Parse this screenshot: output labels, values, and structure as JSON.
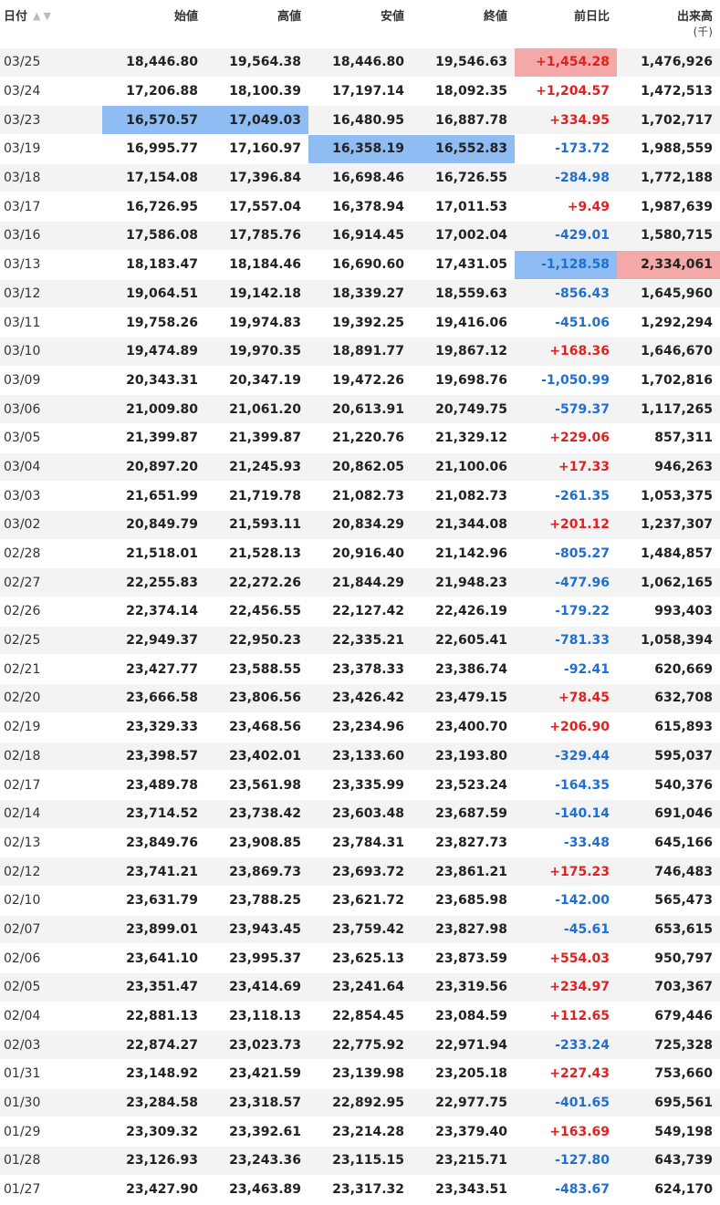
{
  "header": {
    "date": "日付",
    "open": "始値",
    "high": "高値",
    "low": "安値",
    "close": "終値",
    "change": "前日比",
    "volume": "出来高",
    "volume_unit": "(千)",
    "sort_icon": "sort-asc-desc-icon"
  },
  "colors": {
    "positive": "#e0211f",
    "negative": "#1f6fd1",
    "highlight_blue": "#8fbdf3",
    "highlight_red": "#f4a8a8"
  },
  "rows": [
    {
      "date": "03/25",
      "open": "18,446.80",
      "high": "19,564.38",
      "low": "18,446.80",
      "close": "19,546.63",
      "change": "+1,454.28",
      "volume": "1,476,926",
      "hl": {
        "change": "red"
      }
    },
    {
      "date": "03/24",
      "open": "17,206.88",
      "high": "18,100.39",
      "low": "17,197.14",
      "close": "18,092.35",
      "change": "+1,204.57",
      "volume": "1,472,513",
      "hl": {}
    },
    {
      "date": "03/23",
      "open": "16,570.57",
      "high": "17,049.03",
      "low": "16,480.95",
      "close": "16,887.78",
      "change": "+334.95",
      "volume": "1,702,717",
      "hl": {
        "open": "blue",
        "high": "blue"
      }
    },
    {
      "date": "03/19",
      "open": "16,995.77",
      "high": "17,160.97",
      "low": "16,358.19",
      "close": "16,552.83",
      "change": "-173.72",
      "volume": "1,988,559",
      "hl": {
        "low": "blue",
        "close": "blue"
      }
    },
    {
      "date": "03/18",
      "open": "17,154.08",
      "high": "17,396.84",
      "low": "16,698.46",
      "close": "16,726.55",
      "change": "-284.98",
      "volume": "1,772,188",
      "hl": {}
    },
    {
      "date": "03/17",
      "open": "16,726.95",
      "high": "17,557.04",
      "low": "16,378.94",
      "close": "17,011.53",
      "change": "+9.49",
      "volume": "1,987,639",
      "hl": {}
    },
    {
      "date": "03/16",
      "open": "17,586.08",
      "high": "17,785.76",
      "low": "16,914.45",
      "close": "17,002.04",
      "change": "-429.01",
      "volume": "1,580,715",
      "hl": {}
    },
    {
      "date": "03/13",
      "open": "18,183.47",
      "high": "18,184.46",
      "low": "16,690.60",
      "close": "17,431.05",
      "change": "-1,128.58",
      "volume": "2,334,061",
      "hl": {
        "change": "blue",
        "volume": "red"
      }
    },
    {
      "date": "03/12",
      "open": "19,064.51",
      "high": "19,142.18",
      "low": "18,339.27",
      "close": "18,559.63",
      "change": "-856.43",
      "volume": "1,645,960",
      "hl": {}
    },
    {
      "date": "03/11",
      "open": "19,758.26",
      "high": "19,974.83",
      "low": "19,392.25",
      "close": "19,416.06",
      "change": "-451.06",
      "volume": "1,292,294",
      "hl": {}
    },
    {
      "date": "03/10",
      "open": "19,474.89",
      "high": "19,970.35",
      "low": "18,891.77",
      "close": "19,867.12",
      "change": "+168.36",
      "volume": "1,646,670",
      "hl": {}
    },
    {
      "date": "03/09",
      "open": "20,343.31",
      "high": "20,347.19",
      "low": "19,472.26",
      "close": "19,698.76",
      "change": "-1,050.99",
      "volume": "1,702,816",
      "hl": {}
    },
    {
      "date": "03/06",
      "open": "21,009.80",
      "high": "21,061.20",
      "low": "20,613.91",
      "close": "20,749.75",
      "change": "-579.37",
      "volume": "1,117,265",
      "hl": {}
    },
    {
      "date": "03/05",
      "open": "21,399.87",
      "high": "21,399.87",
      "low": "21,220.76",
      "close": "21,329.12",
      "change": "+229.06",
      "volume": "857,311",
      "hl": {}
    },
    {
      "date": "03/04",
      "open": "20,897.20",
      "high": "21,245.93",
      "low": "20,862.05",
      "close": "21,100.06",
      "change": "+17.33",
      "volume": "946,263",
      "hl": {}
    },
    {
      "date": "03/03",
      "open": "21,651.99",
      "high": "21,719.78",
      "low": "21,082.73",
      "close": "21,082.73",
      "change": "-261.35",
      "volume": "1,053,375",
      "hl": {}
    },
    {
      "date": "03/02",
      "open": "20,849.79",
      "high": "21,593.11",
      "low": "20,834.29",
      "close": "21,344.08",
      "change": "+201.12",
      "volume": "1,237,307",
      "hl": {}
    },
    {
      "date": "02/28",
      "open": "21,518.01",
      "high": "21,528.13",
      "low": "20,916.40",
      "close": "21,142.96",
      "change": "-805.27",
      "volume": "1,484,857",
      "hl": {}
    },
    {
      "date": "02/27",
      "open": "22,255.83",
      "high": "22,272.26",
      "low": "21,844.29",
      "close": "21,948.23",
      "change": "-477.96",
      "volume": "1,062,165",
      "hl": {}
    },
    {
      "date": "02/26",
      "open": "22,374.14",
      "high": "22,456.55",
      "low": "22,127.42",
      "close": "22,426.19",
      "change": "-179.22",
      "volume": "993,403",
      "hl": {}
    },
    {
      "date": "02/25",
      "open": "22,949.37",
      "high": "22,950.23",
      "low": "22,335.21",
      "close": "22,605.41",
      "change": "-781.33",
      "volume": "1,058,394",
      "hl": {}
    },
    {
      "date": "02/21",
      "open": "23,427.77",
      "high": "23,588.55",
      "low": "23,378.33",
      "close": "23,386.74",
      "change": "-92.41",
      "volume": "620,669",
      "hl": {}
    },
    {
      "date": "02/20",
      "open": "23,666.58",
      "high": "23,806.56",
      "low": "23,426.42",
      "close": "23,479.15",
      "change": "+78.45",
      "volume": "632,708",
      "hl": {}
    },
    {
      "date": "02/19",
      "open": "23,329.33",
      "high": "23,468.56",
      "low": "23,234.96",
      "close": "23,400.70",
      "change": "+206.90",
      "volume": "615,893",
      "hl": {}
    },
    {
      "date": "02/18",
      "open": "23,398.57",
      "high": "23,402.01",
      "low": "23,133.60",
      "close": "23,193.80",
      "change": "-329.44",
      "volume": "595,037",
      "hl": {}
    },
    {
      "date": "02/17",
      "open": "23,489.78",
      "high": "23,561.98",
      "low": "23,335.99",
      "close": "23,523.24",
      "change": "-164.35",
      "volume": "540,376",
      "hl": {}
    },
    {
      "date": "02/14",
      "open": "23,714.52",
      "high": "23,738.42",
      "low": "23,603.48",
      "close": "23,687.59",
      "change": "-140.14",
      "volume": "691,046",
      "hl": {}
    },
    {
      "date": "02/13",
      "open": "23,849.76",
      "high": "23,908.85",
      "low": "23,784.31",
      "close": "23,827.73",
      "change": "-33.48",
      "volume": "645,166",
      "hl": {}
    },
    {
      "date": "02/12",
      "open": "23,741.21",
      "high": "23,869.73",
      "low": "23,693.72",
      "close": "23,861.21",
      "change": "+175.23",
      "volume": "746,483",
      "hl": {}
    },
    {
      "date": "02/10",
      "open": "23,631.79",
      "high": "23,788.25",
      "low": "23,621.72",
      "close": "23,685.98",
      "change": "-142.00",
      "volume": "565,473",
      "hl": {}
    },
    {
      "date": "02/07",
      "open": "23,899.01",
      "high": "23,943.45",
      "low": "23,759.42",
      "close": "23,827.98",
      "change": "-45.61",
      "volume": "653,615",
      "hl": {}
    },
    {
      "date": "02/06",
      "open": "23,641.10",
      "high": "23,995.37",
      "low": "23,625.13",
      "close": "23,873.59",
      "change": "+554.03",
      "volume": "950,797",
      "hl": {}
    },
    {
      "date": "02/05",
      "open": "23,351.47",
      "high": "23,414.69",
      "low": "23,241.64",
      "close": "23,319.56",
      "change": "+234.97",
      "volume": "703,367",
      "hl": {}
    },
    {
      "date": "02/04",
      "open": "22,881.13",
      "high": "23,118.13",
      "low": "22,854.45",
      "close": "23,084.59",
      "change": "+112.65",
      "volume": "679,446",
      "hl": {}
    },
    {
      "date": "02/03",
      "open": "22,874.27",
      "high": "23,023.73",
      "low": "22,775.92",
      "close": "22,971.94",
      "change": "-233.24",
      "volume": "725,328",
      "hl": {}
    },
    {
      "date": "01/31",
      "open": "23,148.92",
      "high": "23,421.59",
      "low": "23,139.98",
      "close": "23,205.18",
      "change": "+227.43",
      "volume": "753,660",
      "hl": {}
    },
    {
      "date": "01/30",
      "open": "23,284.58",
      "high": "23,318.57",
      "low": "22,892.95",
      "close": "22,977.75",
      "change": "-401.65",
      "volume": "695,561",
      "hl": {}
    },
    {
      "date": "01/29",
      "open": "23,309.32",
      "high": "23,392.61",
      "low": "23,214.28",
      "close": "23,379.40",
      "change": "+163.69",
      "volume": "549,198",
      "hl": {}
    },
    {
      "date": "01/28",
      "open": "23,126.93",
      "high": "23,243.36",
      "low": "23,115.15",
      "close": "23,215.71",
      "change": "-127.80",
      "volume": "643,739",
      "hl": {}
    },
    {
      "date": "01/27",
      "open": "23,427.90",
      "high": "23,463.89",
      "low": "23,317.32",
      "close": "23,343.51",
      "change": "-483.67",
      "volume": "624,170",
      "hl": {}
    }
  ]
}
